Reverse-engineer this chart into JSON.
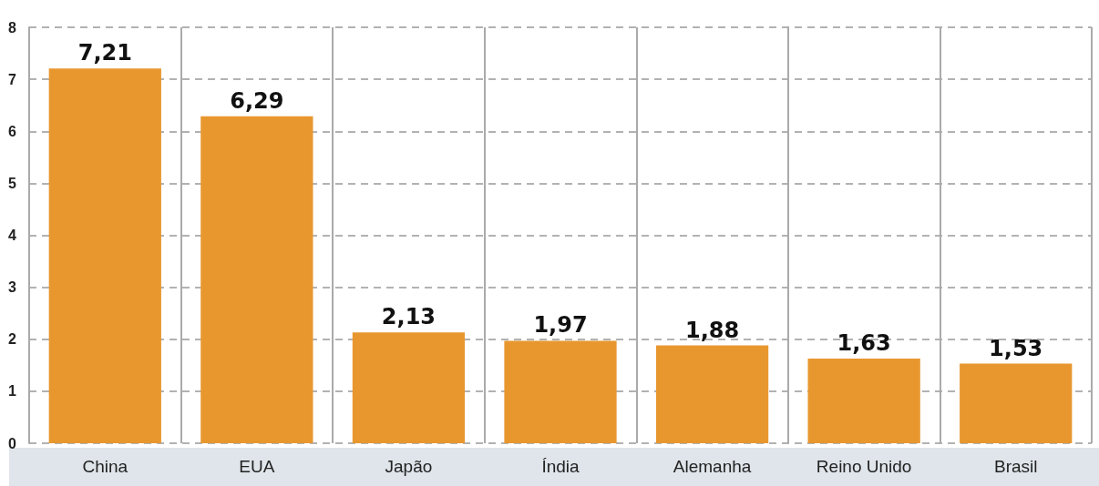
{
  "chart_data": {
    "type": "bar",
    "categories": [
      "China",
      "EUA",
      "Japão",
      "Índia",
      "Alemanha",
      "Reino Unido",
      "Brasil"
    ],
    "values": [
      7.21,
      6.29,
      2.13,
      1.97,
      1.88,
      1.63,
      1.53
    ],
    "value_labels": [
      "7,21",
      "6,29",
      "2,13",
      "1,97",
      "1,88",
      "1,63",
      "1,53"
    ],
    "color": "#e8972f",
    "ylim": [
      0,
      8
    ],
    "yticks": [
      0,
      1,
      2,
      3,
      4,
      5,
      6,
      7,
      8
    ],
    "grid": true
  }
}
